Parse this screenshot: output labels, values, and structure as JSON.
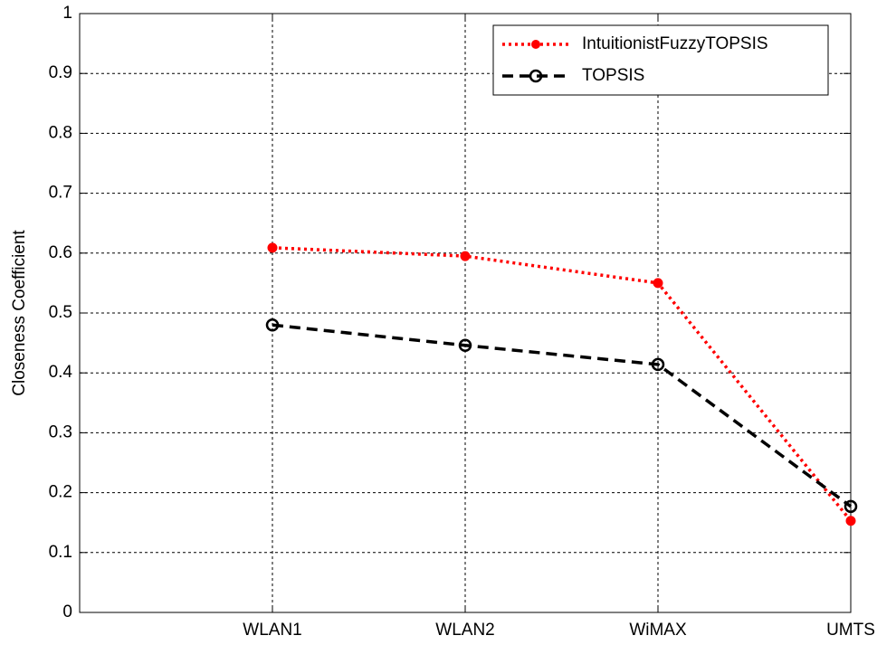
{
  "chart_data": {
    "type": "line",
    "ylabel": "Closeness Coefficient",
    "categories": [
      null,
      "WLAN1",
      "WLAN2",
      "WiMAX",
      "UMTS"
    ],
    "series": [
      {
        "name": "IntuitionistFuzzyTOPSIS",
        "color": "#ff0000",
        "values": [
          null,
          0.609,
          0.595,
          0.55,
          0.153
        ]
      },
      {
        "name": "TOPSIS",
        "color": "#000000",
        "values": [
          null,
          0.48,
          0.446,
          0.414,
          0.177
        ]
      }
    ],
    "ylim": [
      0,
      1
    ],
    "yticks": [
      0,
      0.1,
      0.2,
      0.3,
      0.4,
      0.5,
      0.6,
      0.7,
      0.8,
      0.9,
      1
    ],
    "grid": true,
    "legend": "upper right"
  }
}
